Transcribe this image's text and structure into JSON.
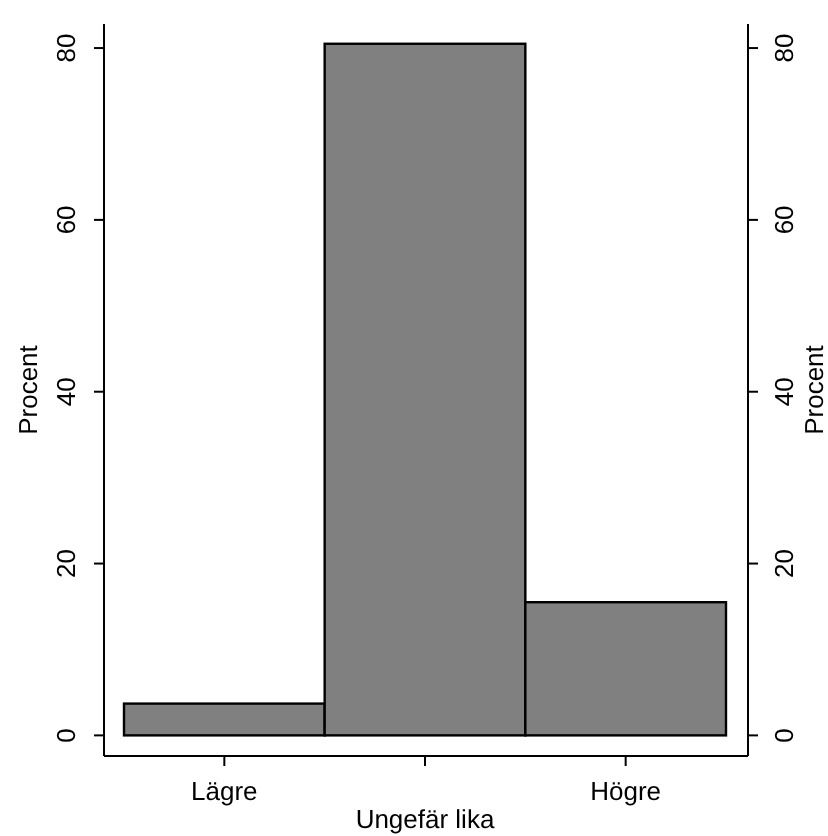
{
  "chart_data": {
    "type": "bar",
    "categories": [
      "Lägre",
      "Ungefär lika",
      "Högre"
    ],
    "values": [
      3.7,
      80.5,
      15.5
    ],
    "color": "#808080",
    "ylabel": "Procent",
    "y2label": "Procent",
    "ylim": [
      -2.4,
      82.8
    ],
    "yticks": [
      0,
      20,
      40,
      60,
      80
    ],
    "y2lim": [
      -2.4,
      82.8
    ],
    "y2ticks": [
      0,
      20,
      40,
      60,
      80
    ],
    "grid": false
  }
}
